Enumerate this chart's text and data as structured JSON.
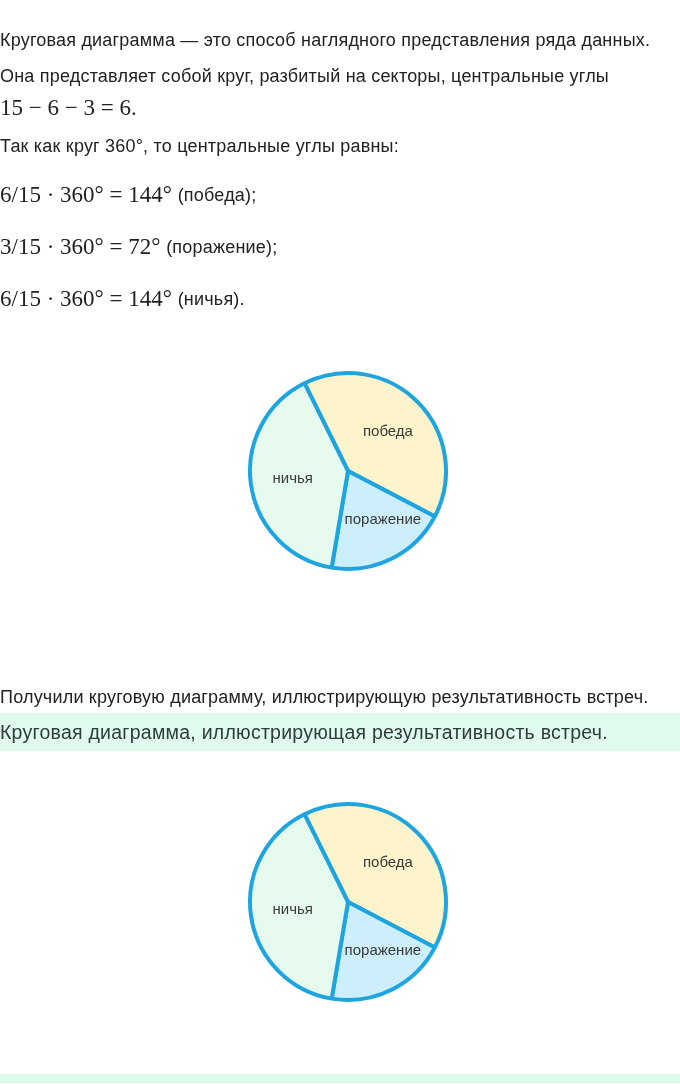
{
  "chart_data": [
    {
      "type": "pie",
      "annotations": [
        "Круговая диаграмма — это способ наглядного представления ряда данных.",
        "Она представляет собой круг, разбитый на секторы, центральные углы",
        "15 − 6 − 3 = 6.",
        "Так как круг 360°, то центральные углы равны:",
        "6/15 · 360° = 144° (победа);",
        "3/15 · 360° = 72° (поражение);",
        "6/15 · 360° = 144° (ничья)."
      ],
      "categories": [
        "победа",
        "поражение",
        "ничья"
      ],
      "values": [
        40,
        20,
        40
      ],
      "colors": [
        "#fdf4cb",
        "#cdeefb",
        "#e7faee"
      ]
    },
    {
      "type": "pie",
      "title": "Круговая диаграмма, иллюстрирующая результативность встреч.",
      "annotations": [
        "Получили круговую диаграмму, иллюстрирующую результативность встреч."
      ],
      "categories": [
        "победа",
        "поражение",
        "ничья"
      ],
      "values": [
        40,
        20,
        40
      ],
      "colors": [
        "#fdf4cb",
        "#cdeefb",
        "#e7faee"
      ]
    }
  ]
}
